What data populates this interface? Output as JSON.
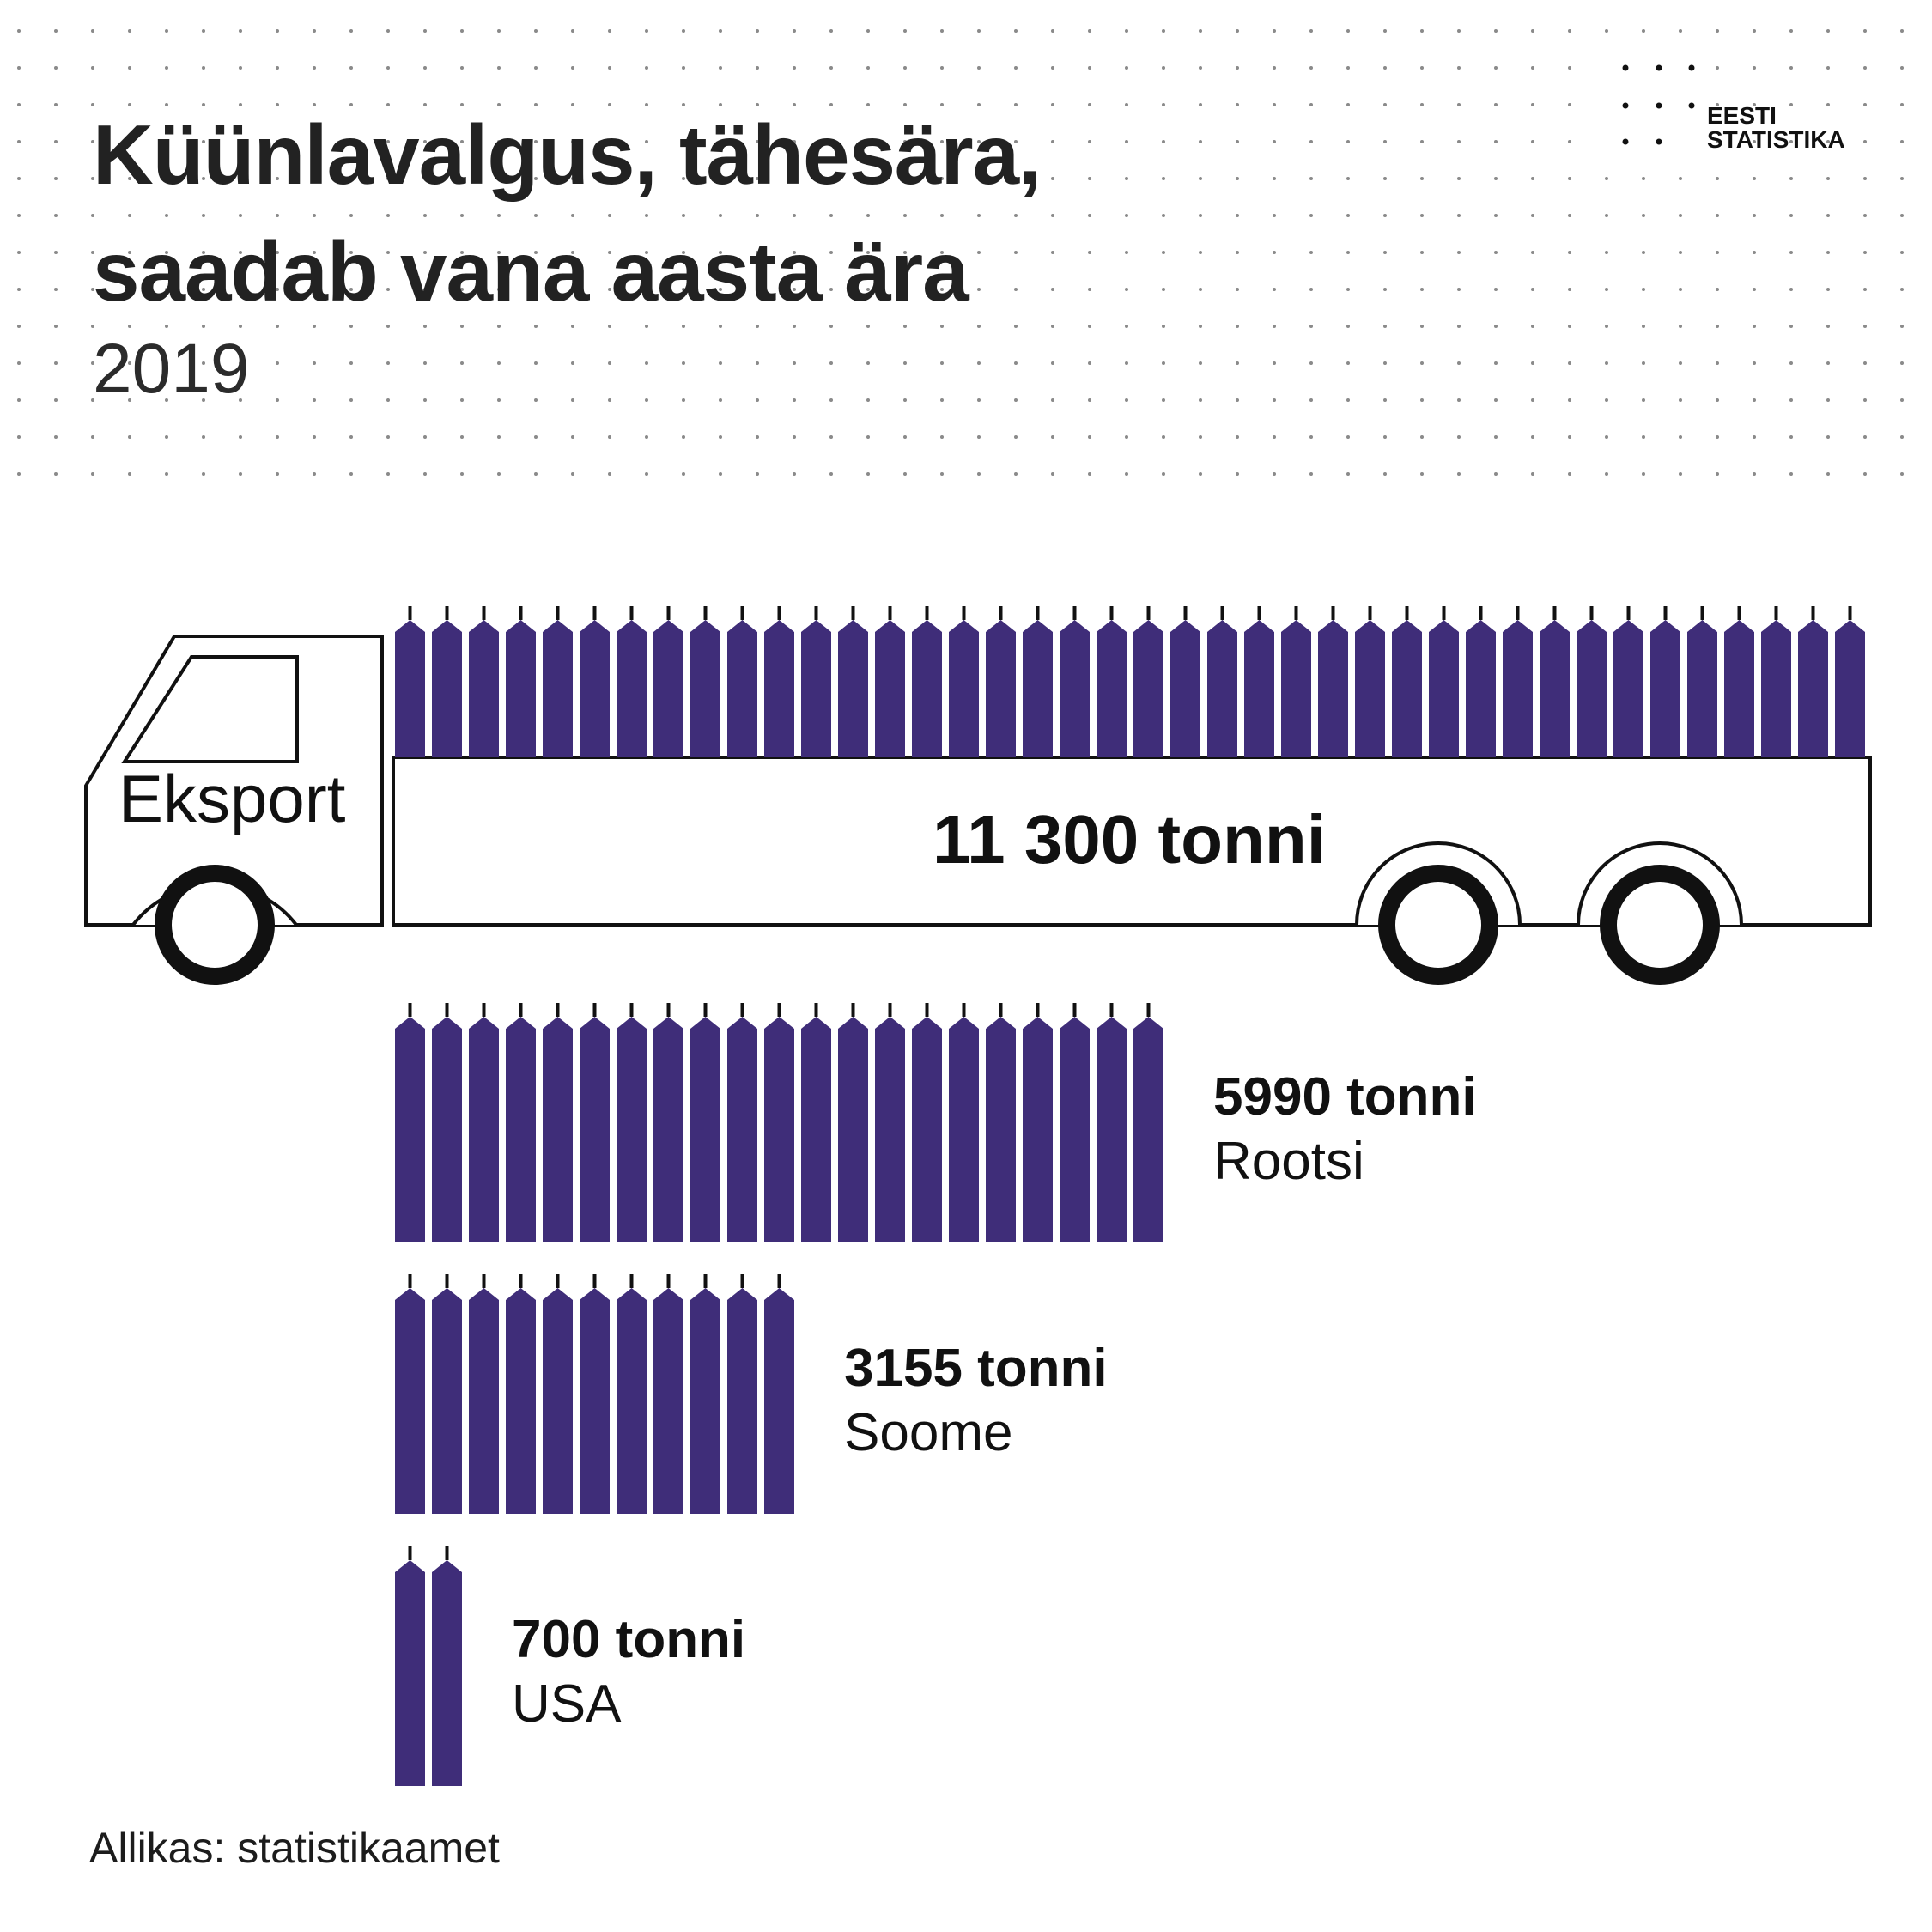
{
  "header": {
    "title_lines": [
      "Küünlavalgus, tähesära,",
      "saadab vana aasta ära"
    ],
    "subtitle": "2019"
  },
  "logo": {
    "lines": [
      "EESTI",
      "STATISTIKA"
    ]
  },
  "colors": {
    "candle": "#3f2d79",
    "ink": "#111111",
    "dot_grid": "#8a8a8a"
  },
  "chart_data": {
    "type": "pictogram",
    "unit": "tonni",
    "total": {
      "label": "Eksport",
      "value": 11300,
      "value_label": "11 300 tonni"
    },
    "series": [
      {
        "name": "Rootsi",
        "value": 5990,
        "value_label": "5990 tonni"
      },
      {
        "name": "Soome",
        "value": 3155,
        "value_label": "3155 tonni"
      },
      {
        "name": "USA",
        "value": 700,
        "value_label": "700 tonni"
      }
    ]
  },
  "footer": {
    "source": "Allikas: statistikaamet"
  }
}
